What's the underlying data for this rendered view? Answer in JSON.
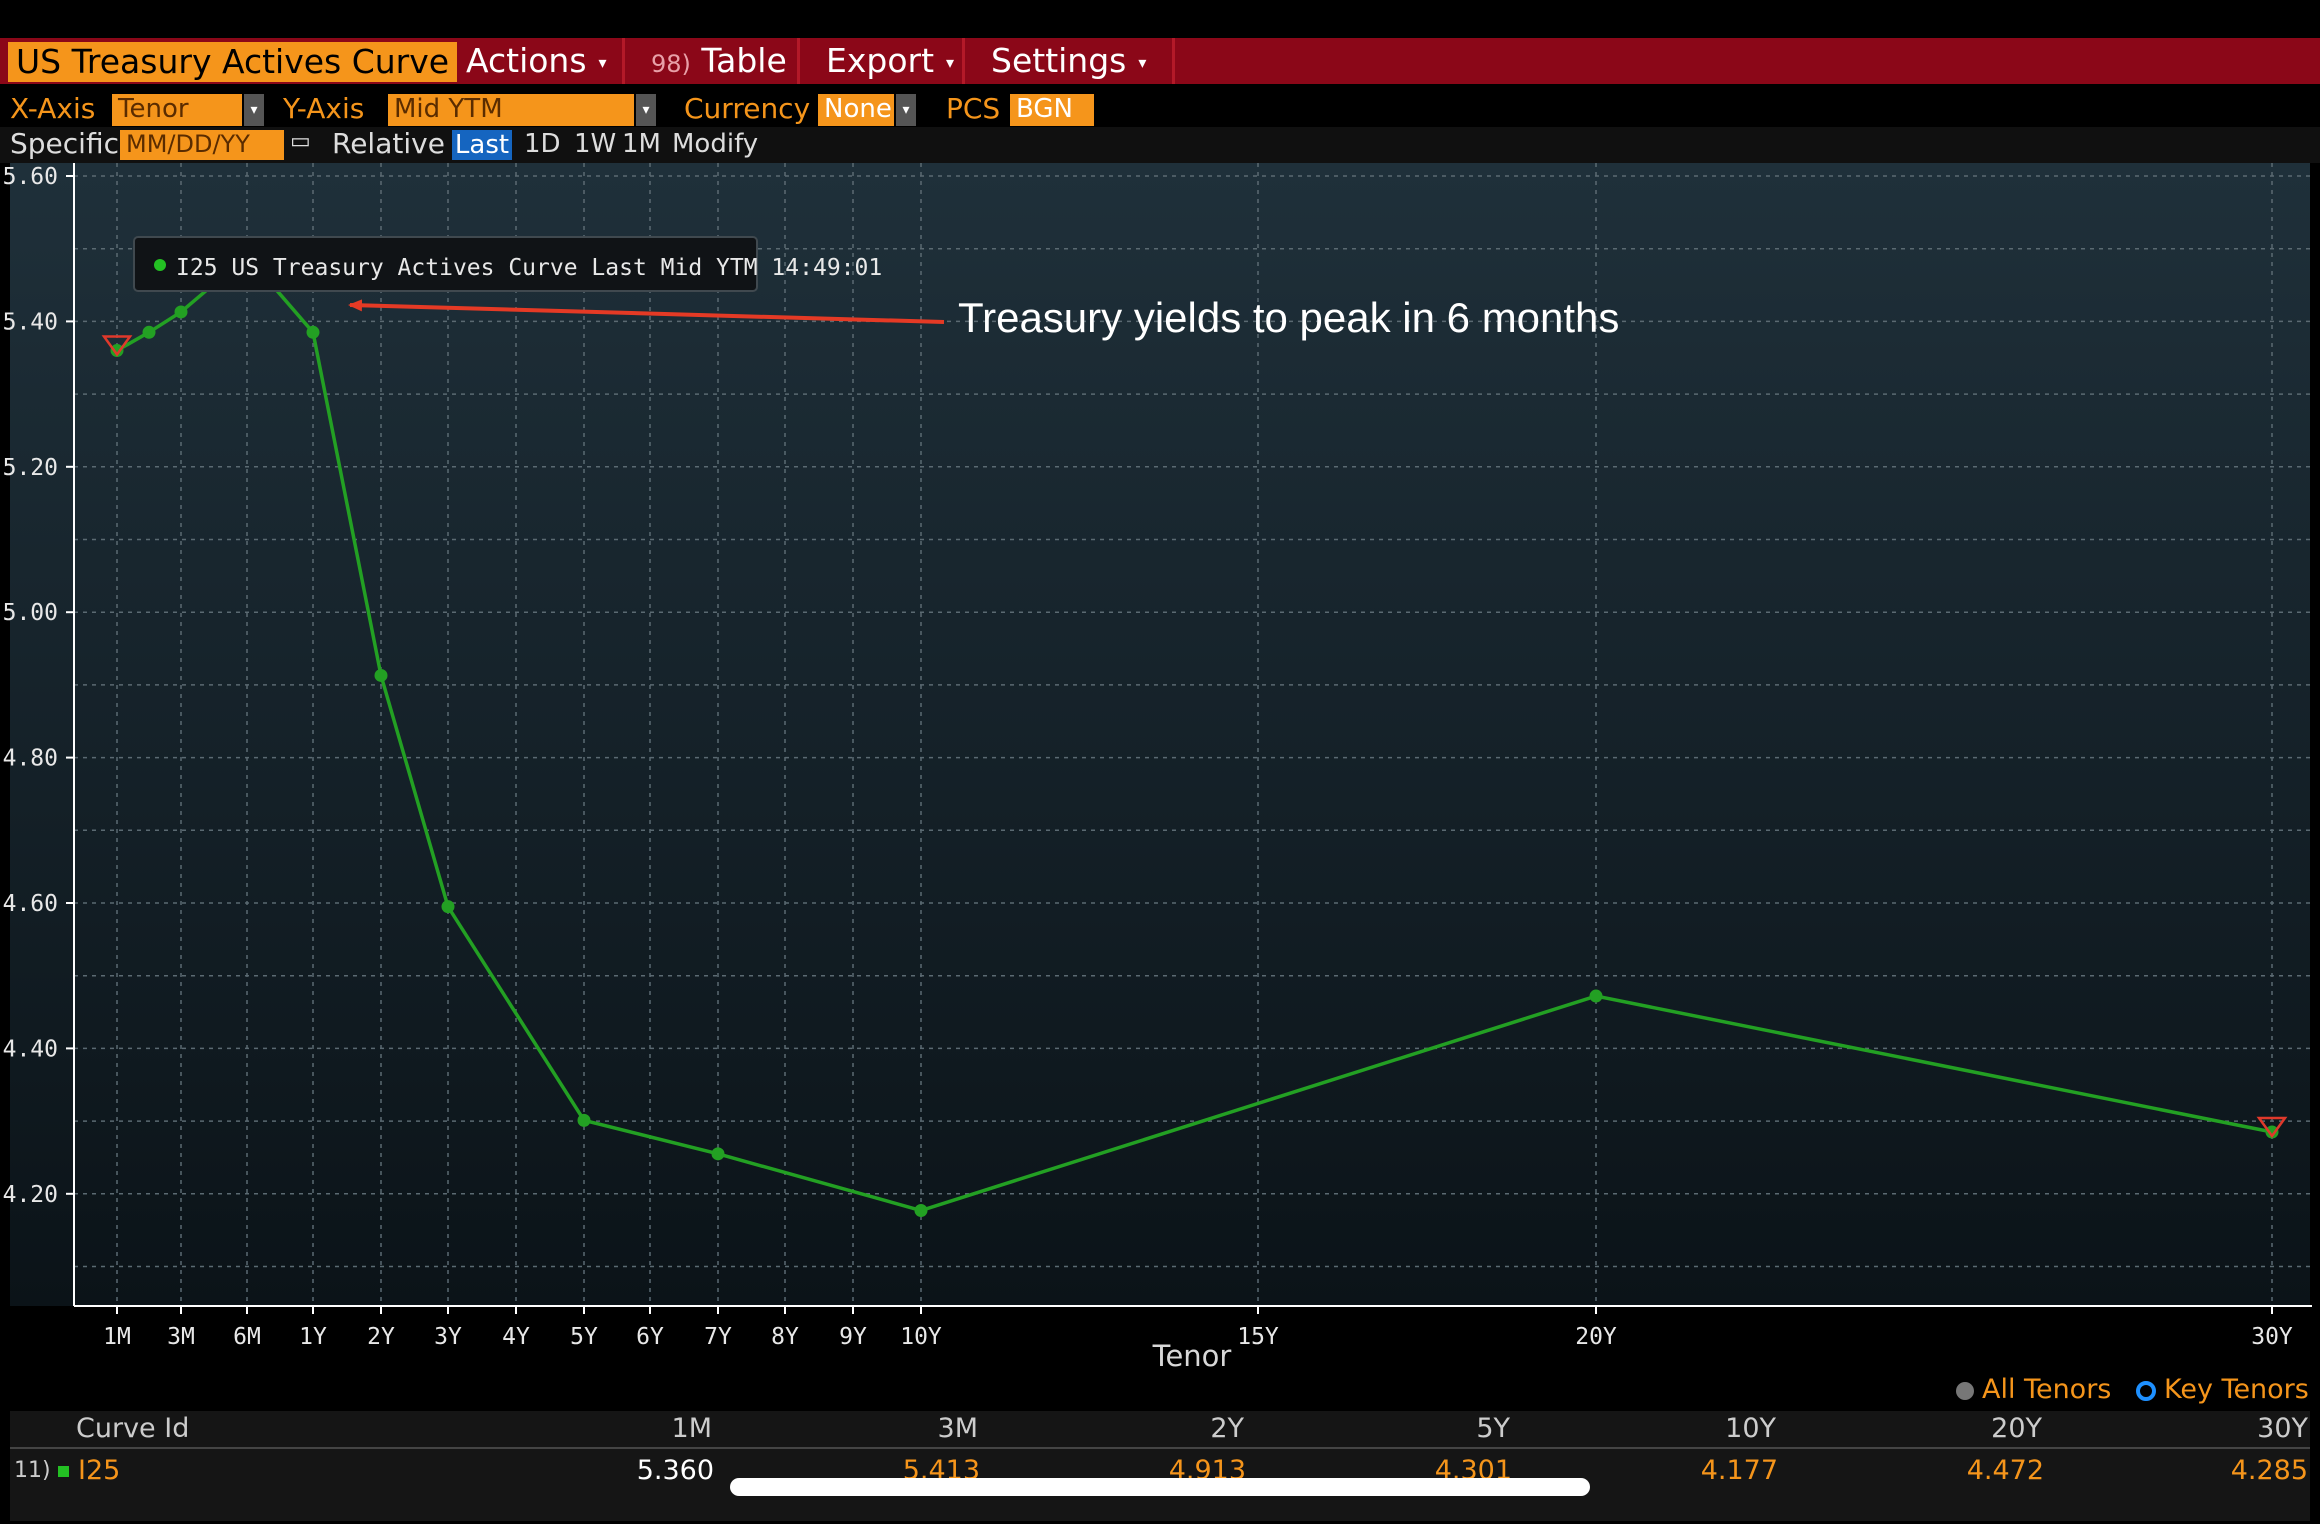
{
  "toolbar": {
    "title": "US Treasury Actives Curve",
    "actions_label": "Actions",
    "table_number": "98)",
    "table_label": "Table",
    "export_label": "Export",
    "settings_label": "Settings",
    "dropdown_arrow": "▾"
  },
  "controls": {
    "xaxis_label": "X-Axis",
    "xaxis_value": "Tenor",
    "yaxis_label": "Y-Axis",
    "yaxis_value": "Mid YTM",
    "currency_label": "Currency",
    "currency_value": "None",
    "pcs_label": "PCS",
    "pcs_value": "BGN",
    "specific_label": "Specific",
    "date_placeholder": "MM/DD/YY",
    "relative_label": "Relative",
    "last_label": "Last",
    "d1_label": "1D",
    "w1_label": "1W",
    "m1_label": "1M",
    "modify_label": "Modify"
  },
  "chart_data": {
    "type": "line",
    "xlabel": "Tenor",
    "ylabel": "",
    "ylim": [
      4.08,
      5.62
    ],
    "y_ticks": [
      "5.60",
      "5.40",
      "5.20",
      "5.00",
      "4.80",
      "4.60",
      "4.40",
      "4.20"
    ],
    "x_ticks": [
      "1M",
      "3M",
      "6M",
      "1Y",
      "2Y",
      "3Y",
      "4Y",
      "5Y",
      "6Y",
      "7Y",
      "8Y",
      "9Y",
      "10Y",
      "15Y",
      "20Y",
      "30Y"
    ],
    "grid": true,
    "series": [
      {
        "name": "I25 US Treasury Actives Curve Last Mid YTM 14:49:01",
        "color": "#23a023",
        "points": [
          {
            "tenor": "1M",
            "years": 0.0833,
            "yield": 5.36
          },
          {
            "tenor": "2M",
            "years": 0.1667,
            "yield": 5.385
          },
          {
            "tenor": "3M",
            "years": 0.25,
            "yield": 5.413
          },
          {
            "tenor": "6M",
            "years": 0.5,
            "yield": 5.49
          },
          {
            "tenor": "1Y",
            "years": 1,
            "yield": 5.385
          },
          {
            "tenor": "2Y",
            "years": 2,
            "yield": 4.913
          },
          {
            "tenor": "3Y",
            "years": 3,
            "yield": 4.595
          },
          {
            "tenor": "5Y",
            "years": 5,
            "yield": 4.301
          },
          {
            "tenor": "7Y",
            "years": 7,
            "yield": 4.255
          },
          {
            "tenor": "10Y",
            "years": 10,
            "yield": 4.177
          },
          {
            "tenor": "20Y",
            "years": 20,
            "yield": 4.472
          },
          {
            "tenor": "30Y",
            "years": 30,
            "yield": 4.285
          }
        ]
      }
    ],
    "legend_label": "I25 US Treasury Actives Curve Last Mid YTM 14:49:01",
    "annotation": "Treasury yields to peak in 6 months"
  },
  "legend": {
    "all_tenors": "All Tenors",
    "key_tenors": "Key Tenors"
  },
  "table": {
    "headers": [
      "Curve Id",
      "1M",
      "3M",
      "2Y",
      "5Y",
      "10Y",
      "20Y",
      "30Y"
    ],
    "row_number": "11)",
    "curve_id": "I25",
    "values": [
      "5.360",
      "5.413",
      "4.913",
      "4.301",
      "4.177",
      "4.472",
      "4.285"
    ]
  }
}
